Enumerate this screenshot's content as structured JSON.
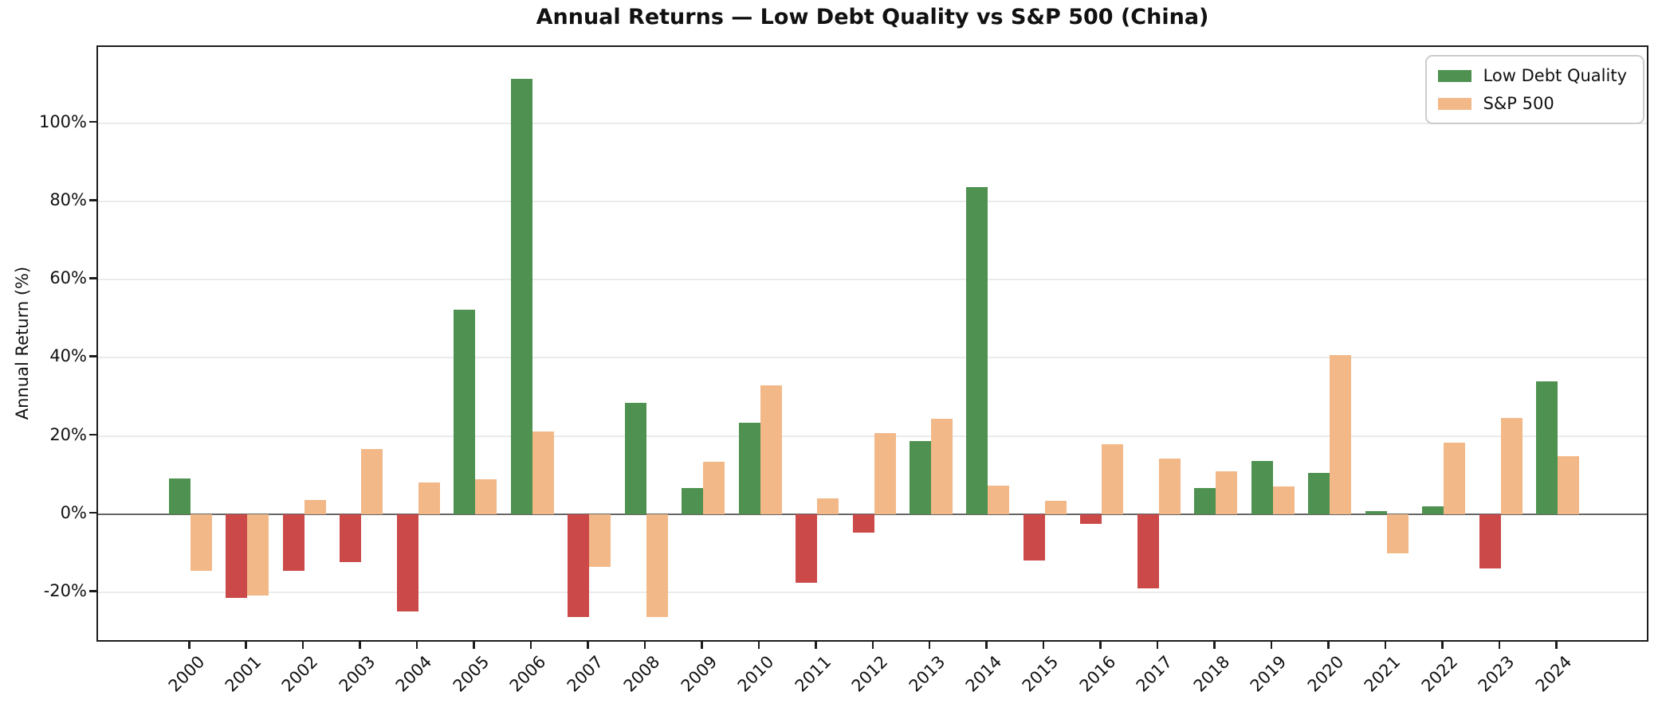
{
  "chart_data": {
    "type": "bar",
    "title": "Annual Returns — Low Debt Quality vs S&P 500 (China)",
    "xlabel": "",
    "ylabel": "Annual Return (%)",
    "categories": [
      "2000",
      "2001",
      "2002",
      "2003",
      "2004",
      "2005",
      "2006",
      "2007",
      "2008",
      "2009",
      "2010",
      "2011",
      "2012",
      "2013",
      "2014",
      "2015",
      "2016",
      "2017",
      "2018",
      "2019",
      "2020",
      "2021",
      "2022",
      "2023",
      "2024"
    ],
    "series": [
      {
        "name": "Low Debt Quality",
        "values": [
          9.2,
          -21.3,
          -14.4,
          -12.3,
          -24.8,
          52.4,
          111.3,
          -26.3,
          28.4,
          6.8,
          23.3,
          -17.5,
          -4.7,
          18.8,
          83.7,
          -11.9,
          -2.4,
          -18.9,
          6.7,
          13.6,
          10.6,
          0.7,
          2.1,
          -13.9,
          33.9
        ],
        "color_positive": "#4e9150",
        "color_negative": "#cc4949",
        "legend_color": "#4e9150"
      },
      {
        "name": "S&P 500",
        "values": [
          -14.5,
          -20.8,
          3.6,
          16.6,
          8.1,
          8.9,
          21.1,
          -13.4,
          -26.3,
          13.4,
          32.9,
          4.0,
          20.8,
          24.5,
          7.4,
          3.4,
          17.8,
          14.3,
          11.0,
          7.2,
          40.7,
          -10.0,
          18.4,
          24.6,
          14.8
        ],
        "color_positive": "#f2b888",
        "color_negative": "#f2b888",
        "legend_color": "#f2b888"
      }
    ],
    "ylim": [
      -33,
      119.5
    ],
    "yticks": [
      -20,
      0,
      20,
      40,
      60,
      80,
      100
    ],
    "ytick_suffix": "%",
    "grid": true,
    "zero_line": true,
    "legend_position": "top-right",
    "colors": {
      "grid": "#ebebeb",
      "zero_line": "#666666",
      "spine": "#1c1c1c",
      "background": "#ffffff",
      "text": "#111111"
    }
  }
}
